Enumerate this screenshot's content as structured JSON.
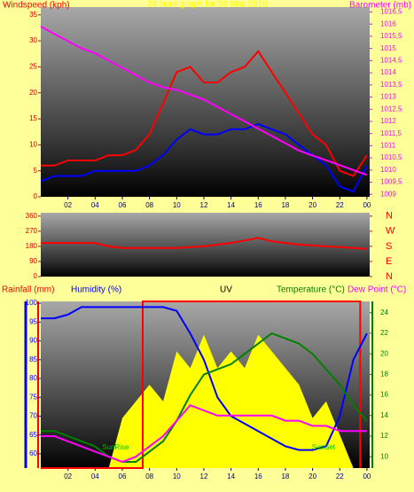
{
  "chart_data": [
    {
      "type": "line",
      "title": "24 hour graph for 31 Mar 2016",
      "y_label": "Windspeed (kph)",
      "y2_label": "Barometer (mb)",
      "x": [
        0,
        1,
        2,
        3,
        4,
        5,
        6,
        7,
        8,
        9,
        10,
        11,
        12,
        13,
        14,
        15,
        16,
        17,
        18,
        19,
        20,
        21,
        22,
        23,
        24
      ],
      "xlim": [
        0,
        24.2
      ],
      "xticks": [
        {
          "value": 2,
          "label": "02"
        },
        {
          "value": 4,
          "label": "04"
        },
        {
          "value": 6,
          "label": "06"
        },
        {
          "value": 8,
          "label": "08"
        },
        10,
        12,
        14,
        16,
        18,
        20,
        22,
        {
          "value": 24,
          "label": "00"
        }
      ],
      "ylim": [
        0,
        36.5
      ],
      "yticks": [
        0,
        5,
        10,
        15,
        20,
        25,
        30,
        35
      ],
      "y2lim": [
        1008.9,
        1016.7
      ],
      "y2ticks": [
        1009,
        {
          "value": 1009.5,
          "label": "1009,5"
        },
        1010,
        {
          "value": 1010.5,
          "label": "1010,5"
        },
        1011,
        {
          "value": 1011.5,
          "label": "1011,5"
        },
        1012,
        {
          "value": 1012.5,
          "label": "1012,5"
        },
        1013,
        {
          "value": 1013.5,
          "label": "1013,5"
        },
        1014,
        {
          "value": 1014.5,
          "label": "1014,5"
        },
        1015,
        {
          "value": 1015.5,
          "label": "1015,5"
        },
        1016,
        {
          "value": 1016.5,
          "label": "1016,5"
        }
      ],
      "series": [
        {
          "color": "#ff0000",
          "axis": "y",
          "values": [
            6,
            6,
            7,
            7,
            7,
            8,
            8,
            9,
            12,
            18,
            24,
            25,
            22,
            22,
            24,
            25,
            28,
            24,
            20,
            16,
            12,
            10,
            5,
            4,
            8
          ]
        },
        {
          "color": "#0000ff",
          "axis": "y",
          "values": [
            3,
            4,
            4,
            4,
            5,
            5,
            5,
            5,
            6,
            8,
            11,
            13,
            12,
            12,
            13,
            13,
            14,
            13,
            12,
            10,
            8,
            6,
            2,
            1,
            6
          ]
        },
        {
          "color": "#ff00ff",
          "axis": "y2",
          "values": [
            1015.9,
            1015.6,
            1015.3,
            1015.0,
            1014.8,
            1014.5,
            1014.2,
            1013.9,
            1013.6,
            1013.4,
            1013.3,
            1013.1,
            1012.9,
            1012.6,
            1012.3,
            1012.0,
            1011.7,
            1011.4,
            1011.1,
            1010.8,
            1010.6,
            1010.4,
            1010.2,
            1010.0,
            1009.8
          ]
        }
      ]
    },
    {
      "type": "line",
      "x": [
        0,
        1,
        2,
        3,
        4,
        5,
        6,
        7,
        8,
        9,
        10,
        11,
        12,
        13,
        14,
        15,
        16,
        17,
        18,
        19,
        20,
        21,
        22,
        23,
        24
      ],
      "xlim": [
        0,
        24.2
      ],
      "ylim": [
        0,
        380
      ],
      "yticks": [
        0,
        90,
        180,
        270,
        360
      ],
      "y2lim": [
        0,
        380
      ],
      "y2ticks": [
        {
          "value": 360,
          "label": "N"
        },
        {
          "value": 270,
          "label": "W"
        },
        {
          "value": 180,
          "label": "S"
        },
        {
          "value": 90,
          "label": "E"
        },
        {
          "value": 0,
          "label": "N"
        }
      ],
      "series": [
        {
          "color": "#ff0000",
          "axis": "y",
          "values": [
            200,
            200,
            200,
            200,
            200,
            180,
            170,
            170,
            170,
            170,
            170,
            175,
            180,
            190,
            200,
            215,
            230,
            210,
            200,
            190,
            185,
            180,
            175,
            170,
            165
          ]
        }
      ]
    },
    {
      "type": "line",
      "x": [
        0,
        1,
        2,
        3,
        4,
        5,
        6,
        7,
        8,
        9,
        10,
        11,
        12,
        13,
        14,
        15,
        16,
        17,
        18,
        19,
        20,
        21,
        22,
        23,
        24
      ],
      "xlim": [
        0,
        24.2
      ],
      "xticks": [
        {
          "value": 2,
          "label": "02"
        },
        {
          "value": 4,
          "label": "04"
        },
        {
          "value": 6,
          "label": "06"
        },
        {
          "value": 8,
          "label": "08"
        },
        10,
        12,
        14,
        16,
        18,
        20,
        22,
        {
          "value": 24,
          "label": "00"
        }
      ],
      "ylim": [
        56.2,
        100.5
      ],
      "yticks": [
        60,
        65,
        70,
        75,
        80,
        85,
        90,
        95,
        100
      ],
      "y2lim": [
        8.9,
        25.1
      ],
      "y2ticks": [
        10,
        12,
        14,
        16,
        18,
        20,
        22,
        24
      ],
      "y3lim": [
        0,
        10
      ],
      "y4lim": [
        0,
        1
      ],
      "annotations": [
        "SunRise",
        "SunSet"
      ],
      "series": [
        {
          "name": "Rainfall (mm)",
          "color": "#ff0000",
          "axis": "y4",
          "x": [
            0,
            7.5,
            7.5,
            23.5,
            23.5
          ],
          "values": [
            0,
            0,
            1,
            1,
            0
          ]
        },
        {
          "name": "Humidity (%)",
          "color": "#0000ff",
          "axis": "y",
          "values": [
            96,
            96,
            97,
            99,
            99,
            99,
            99,
            99,
            99,
            99,
            98,
            92,
            85,
            75,
            70,
            68,
            66,
            64,
            62,
            61,
            61,
            62,
            70,
            85,
            92
          ]
        },
        {
          "name": "UV",
          "color": "#ffff00",
          "axis": "y3",
          "values": [
            0,
            0,
            0,
            0,
            0,
            0,
            3,
            4,
            5,
            4,
            7,
            6,
            8,
            6,
            7,
            6,
            8,
            7,
            6,
            5,
            3,
            4,
            2,
            0,
            0
          ]
        },
        {
          "name": "Temperature (°C)",
          "color": "#008000",
          "axis": "y2",
          "values": [
            12.5,
            12.5,
            12,
            11.5,
            11,
            10,
            9.5,
            9.5,
            10.5,
            11.5,
            13.5,
            16,
            18,
            18.5,
            19,
            20,
            21,
            22,
            21.5,
            21,
            20,
            18.5,
            17,
            15,
            13.5
          ]
        },
        {
          "name": "Dew Point (°C)",
          "color": "#ff00ff",
          "axis": "y2",
          "values": [
            12,
            12,
            11.5,
            11,
            10.5,
            10,
            9.5,
            10,
            11,
            12,
            13.5,
            15,
            14.5,
            14,
            14,
            14,
            14,
            14,
            13.5,
            13.5,
            13,
            13,
            12.5,
            12.5,
            12.5
          ]
        }
      ]
    }
  ]
}
